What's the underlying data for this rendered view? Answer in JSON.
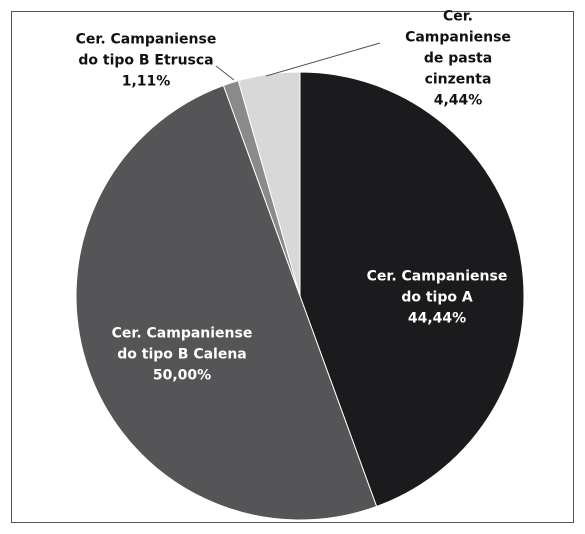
{
  "chart_data": {
    "type": "pie",
    "categories": [
      "Cer. Campaniense\ndo tipo A",
      "Cer. Campaniense\ndo tipo B Calena",
      "Cer. Campaniense\ndo tipo B Etrusca",
      "Cer. Campaniense\nde pasta cinzenta"
    ],
    "values": [
      44.44,
      50.0,
      1.11,
      4.44
    ],
    "value_labels": [
      "44,44%",
      "50,00%",
      "1,11%",
      "4,44%"
    ],
    "colors": [
      "#1b1b1d",
      "#555557",
      "#8a8a8a",
      "#d8d8d8"
    ]
  }
}
